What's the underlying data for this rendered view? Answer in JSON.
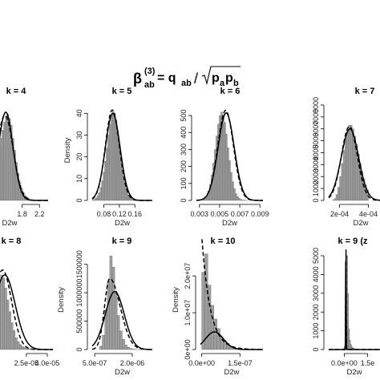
{
  "formula": {
    "beta": "β",
    "sup": "(3)",
    "sub": "ab",
    "eq": " = q",
    "q_sub": "ab",
    "slash": "/",
    "p": "p",
    "p1_sub": "a",
    "p2": "p",
    "p2_sub": "b"
  },
  "chart_data": [
    {
      "type": "bar",
      "title": "k = 4",
      "xlabel": "D2w",
      "ylabel": "",
      "xticks": [
        "1.8",
        "2.2"
      ],
      "yticks": [],
      "xlim": [
        1.25,
        2.4
      ],
      "ylim": [
        0,
        1
      ],
      "bins": {
        "start": 1.25,
        "width": 0.04,
        "values": [
          0.55,
          0.62,
          0.7,
          0.78,
          0.84,
          0.86,
          0.82,
          0.75,
          0.62,
          0.5,
          0.38,
          0.27,
          0.18,
          0.12,
          0.08,
          0.05,
          0.03,
          0.02,
          0.01,
          0.005
        ]
      },
      "series": [
        {
          "style": "solid",
          "shape": "normal",
          "mu": 1.42,
          "sigma": 0.17,
          "peak": 0.88
        },
        {
          "style": "dashed",
          "shape": "normal",
          "mu": 1.4,
          "sigma": 0.19,
          "peak": 0.85
        }
      ]
    },
    {
      "type": "bar",
      "title": "k = 5",
      "xlabel": "D2w",
      "ylabel": "Density",
      "xticks": [
        "0.08",
        "0.12",
        "0.16"
      ],
      "yticks": [
        "0",
        "10",
        "20",
        "30",
        "40"
      ],
      "xlim": [
        0.05,
        0.205
      ],
      "ylim": [
        0,
        46
      ],
      "bins": {
        "start": 0.05,
        "width": 0.004,
        "values": [
          0.2,
          0.5,
          1,
          2,
          3.5,
          6,
          9,
          13,
          18,
          24,
          30,
          35,
          39,
          41,
          40,
          37,
          32,
          26,
          20,
          14.5,
          10,
          6.5,
          4,
          2.5,
          1.5,
          0.8,
          0.4,
          0.2,
          0.1,
          0.05
        ]
      },
      "series": [
        {
          "style": "solid",
          "shape": "normal",
          "mu": 0.103,
          "sigma": 0.019,
          "peak": 40
        },
        {
          "style": "dashed",
          "shape": "normal",
          "mu": 0.102,
          "sigma": 0.018,
          "peak": 41.5
        }
      ]
    },
    {
      "type": "bar",
      "title": "k = 6",
      "xlabel": "D2w",
      "ylabel": "",
      "xticks": [
        "0.003",
        "0.005",
        "0.007",
        "0.009"
      ],
      "yticks": [
        "0",
        "100",
        "200",
        "300",
        "400",
        "500"
      ],
      "xlim": [
        0.0027,
        0.0093
      ],
      "ylim": [
        0,
        590
      ],
      "bins": {
        "start": 0.0032,
        "width": 0.00016,
        "values": [
          2,
          6,
          14,
          28,
          55,
          95,
          150,
          220,
          300,
          380,
          450,
          500,
          520,
          505,
          460,
          390,
          310,
          235,
          165,
          110,
          70,
          40,
          22,
          12,
          6,
          3,
          1.5,
          0.8,
          0.3
        ]
      },
      "series": [
        {
          "style": "solid",
          "shape": "normal",
          "mu": 0.00565,
          "sigma": 0.0008,
          "peak": 515
        },
        {
          "style": "dashed",
          "shape": "normal",
          "mu": 0.0056,
          "sigma": 0.00078,
          "peak": 530
        }
      ]
    },
    {
      "type": "bar",
      "title": "k = 7",
      "xlabel": "D2w",
      "ylabel": "",
      "xticks": [
        "2e-04",
        "4e-04"
      ],
      "yticks": [
        "0",
        "1000",
        "2000",
        "3000",
        "4000",
        "5000",
        "6000",
        "7000",
        "8000"
      ],
      "xlim": [
        0.000125,
        0.00048
      ],
      "ylim": [
        0,
        8400
      ],
      "bins": {
        "start": 0.00015,
        "width": 1.25e-05,
        "values": [
          20,
          150,
          500,
          1100,
          2000,
          3100,
          4200,
          5200,
          5900,
          6300,
          6300,
          6000,
          5400,
          4700,
          3900,
          3100,
          2400,
          1800,
          1300,
          900
        ]
      },
      "series": [
        {
          "style": "solid",
          "shape": "normal",
          "mu": 0.000272,
          "sigma": 6e-05,
          "peak": 6000
        },
        {
          "style": "dashed",
          "shape": "normal",
          "mu": 0.000268,
          "sigma": 5.5e-05,
          "peak": 6200
        }
      ]
    },
    {
      "type": "bar",
      "title": "k = 8",
      "xlabel": "",
      "ylabel": "",
      "xticks": [
        "2.5e-05",
        "4.0e-05"
      ],
      "yticks": [],
      "xlim": [
        5e-06,
        4.4e-05
      ],
      "ylim": [
        0,
        1
      ],
      "bins": {
        "start": 5e-06,
        "width": 1.5e-06,
        "values": [
          0.7,
          0.75,
          0.72,
          0.62,
          0.5,
          0.38,
          0.27,
          0.19,
          0.12,
          0.08,
          0.05,
          0.03,
          0.02,
          0.012,
          0.008,
          0.005,
          0.003,
          0.002,
          0.001,
          0.0005
        ]
      },
      "series": [
        {
          "style": "solid",
          "shape": "normal",
          "mu": 9.5e-06,
          "sigma": 7.5e-06,
          "peak": 0.75
        },
        {
          "style": "dashed",
          "shape": "normal",
          "mu": 8e-06,
          "sigma": 6.5e-06,
          "peak": 0.8
        }
      ]
    },
    {
      "type": "bar",
      "title": "k = 9",
      "xlabel": "D2w",
      "ylabel": "Density",
      "xticks": [
        "5.0e-07",
        "2.0e-06"
      ],
      "yticks": [
        "0",
        "500000",
        "1000000",
        "1500000"
      ],
      "xlim": [
        4e-07,
        2.8e-06
      ],
      "ylim": [
        0,
        1750000
      ],
      "bins": {
        "start": 6e-07,
        "width": 1e-07,
        "values": [
          0,
          60000,
          250000,
          700000,
          1200000,
          1650000,
          1450000,
          1000000,
          600000,
          330000,
          180000,
          80000,
          40000,
          20000,
          8000,
          3000,
          1000,
          500,
          200
        ]
      },
      "series": [
        {
          "style": "solid",
          "shape": "normal",
          "mu": 1.3e-06,
          "sigma": 3.8e-07,
          "peak": 1020000
        },
        {
          "style": "dashed",
          "shape": "lognormal",
          "mu": 1.1e-06,
          "sigma": 2.6e-07,
          "peak": 1250000
        }
      ]
    },
    {
      "type": "bar",
      "title": "k = 10",
      "xlabel": "D2w",
      "ylabel": "Density",
      "xticks": [
        "0.0e+00",
        "1.5e-07"
      ],
      "yticks": [
        "0e+00",
        "1.0e+07",
        "2.0e+07"
      ],
      "xlim": [
        -5e-09,
        2.4e-07
      ],
      "ylim": [
        0,
        27000000
      ],
      "bins": {
        "start": 0.0,
        "width": 1.2e-08,
        "values": [
          21000000,
          26000000,
          17500000,
          12000000,
          8300000,
          5700000,
          3500000,
          2500000,
          1700000,
          900000,
          600000,
          300000,
          150000,
          80000,
          40000,
          20000
        ]
      },
      "series": [
        {
          "style": "solid",
          "shape": "normal",
          "mu": 5e-08,
          "sigma": 3.5e-08,
          "peak": 4800000
        },
        {
          "style": "dashed",
          "shape": "exponential",
          "scale": 3.3e-08,
          "peak": 31000000
        }
      ]
    },
    {
      "type": "bar",
      "title": "k = 9 (z",
      "xlabel": "D2w",
      "ylabel": "",
      "xticks": [
        "0.0e+00",
        "1.5e"
      ],
      "yticks": [
        "0",
        "1000",
        "2000",
        "3000",
        "4000",
        "5000"
      ],
      "xlim": [
        -1e-05,
        2.3e-05
      ],
      "ylim": [
        0,
        5300
      ],
      "bins": {
        "start": -2e-06,
        "width": 6e-07,
        "values": [
          4,
          12,
          35,
          150,
          600,
          5000,
          5000,
          3000,
          1100,
          500,
          280,
          170,
          100,
          70,
          50,
          35,
          25,
          18,
          12,
          8,
          6,
          4,
          3,
          2,
          2,
          1,
          1
        ]
      },
      "series": [
        {
          "style": "solid",
          "shape": "spike",
          "mu": 1e-06,
          "sigma": 1.2e-07,
          "peak": 5500
        },
        {
          "style": "dashed",
          "shape": "spike",
          "mu": 1.1e-06,
          "sigma": 1.5e-07,
          "peak": 5500
        }
      ]
    }
  ]
}
